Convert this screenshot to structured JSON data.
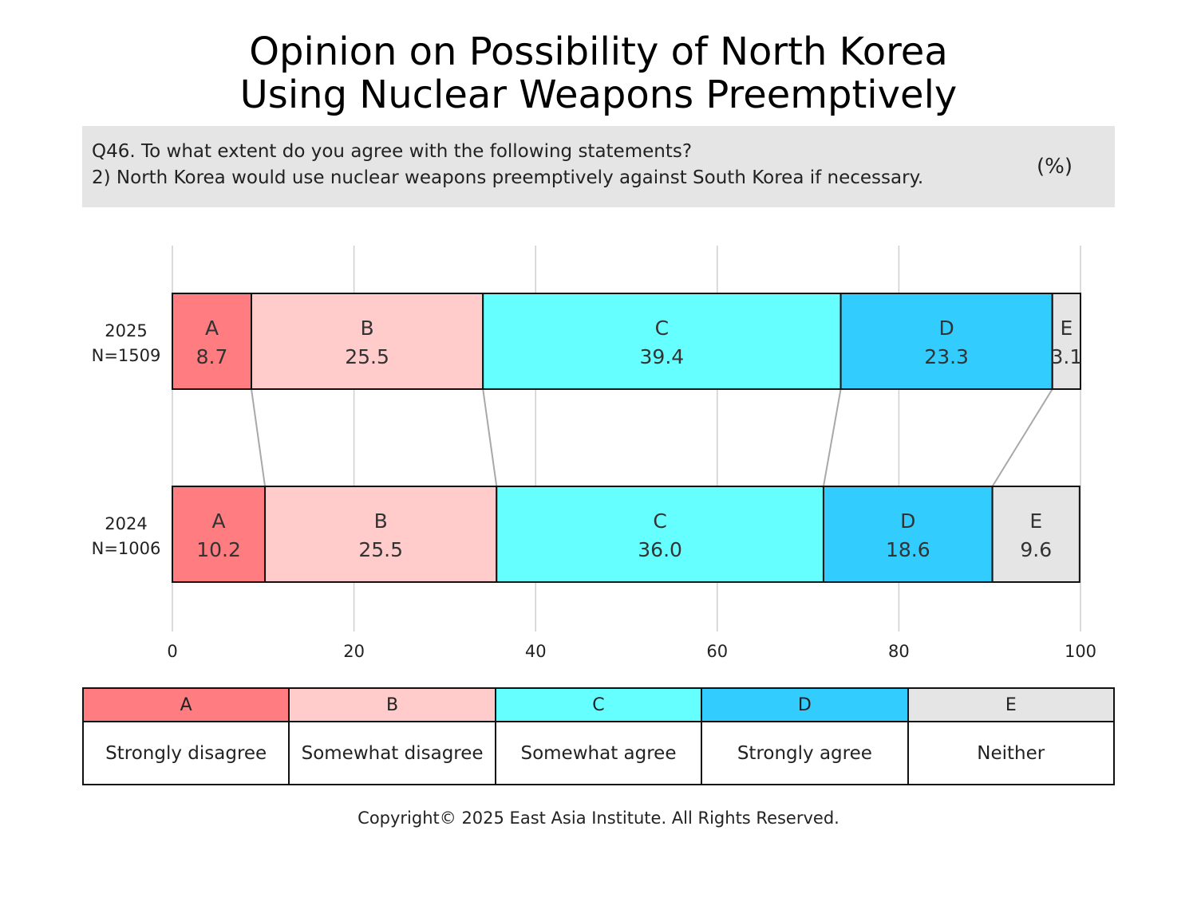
{
  "title_line1": "Opinion on Possibility of North Korea",
  "title_line2": "Using Nuclear Weapons Preemptively",
  "question_line1": "Q46. To what extent do you agree with the following statements?",
  "question_line2": "2) North Korea would use nuclear weapons preemptively against South Korea if necessary.",
  "unit": "(%)",
  "colors": {
    "A": "#ff7c80",
    "B": "#ffcbcb",
    "C": "#66ffff",
    "D": "#33ccff",
    "E": "#e6e5e6"
  },
  "chart_data": {
    "type": "bar",
    "orientation": "horizontal",
    "stacked": true,
    "categories": [
      {
        "label": "2025",
        "sublabel": "N=1509"
      },
      {
        "label": "2024",
        "sublabel": "N=1006"
      }
    ],
    "series": [
      {
        "name": "A",
        "values": [
          8.7,
          10.2
        ]
      },
      {
        "name": "B",
        "values": [
          25.5,
          25.5
        ]
      },
      {
        "name": "C",
        "values": [
          39.4,
          36.0
        ]
      },
      {
        "name": "D",
        "values": [
          23.3,
          18.6
        ]
      },
      {
        "name": "E",
        "values": [
          3.1,
          9.6
        ]
      }
    ],
    "xlim": [
      0,
      100
    ],
    "xticks": [
      0,
      20,
      40,
      60,
      80,
      100
    ],
    "grid": true,
    "connector_lines": true
  },
  "legend": [
    {
      "key": "A",
      "label": "Strongly disagree"
    },
    {
      "key": "B",
      "label": "Somewhat disagree"
    },
    {
      "key": "C",
      "label": "Somewhat agree"
    },
    {
      "key": "D",
      "label": "Strongly agree"
    },
    {
      "key": "E",
      "label": "Neither"
    }
  ],
  "copyright": "Copyright© 2025 East Asia Institute. All Rights Reserved."
}
